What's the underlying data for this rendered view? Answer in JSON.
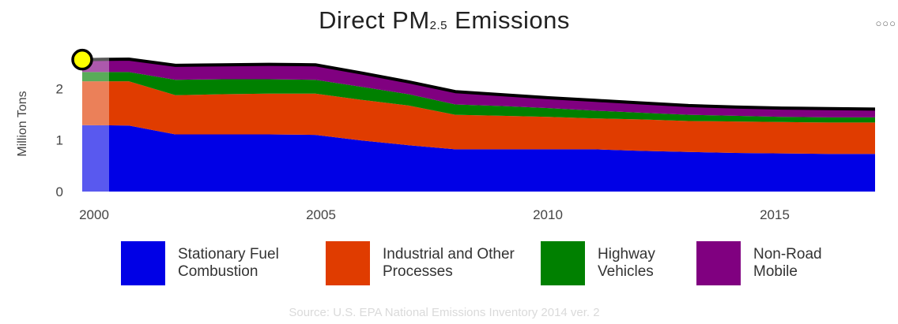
{
  "title": {
    "main": "Direct PM",
    "sub": "2.5",
    "rest": " Emissions"
  },
  "menu_icon": "more-options-icon",
  "source": "Source: U.S. EPA National Emissions Inventory 2014 ver. 2",
  "chart_data": {
    "type": "area",
    "stacked": true,
    "title": "Direct PM2.5 Emissions",
    "ylabel": "Million Tons",
    "xlabel": "",
    "x": [
      2000,
      2001,
      2002,
      2003,
      2004,
      2005,
      2006,
      2007,
      2008,
      2009,
      2010,
      2011,
      2012,
      2013,
      2014,
      2015,
      2016,
      2017
    ],
    "xticks": [
      "2000",
      "2005",
      "2010",
      "2015"
    ],
    "yticks": [
      "0",
      "1",
      "2"
    ],
    "xlim": [
      1999.5,
      2017.1
    ],
    "ylim": [
      0,
      2.8
    ],
    "grid": false,
    "legend_position": "bottom",
    "series": [
      {
        "name": "Stationary Fuel Combustion",
        "color": "#0000e6",
        "values": [
          1.29,
          1.28,
          1.11,
          1.11,
          1.11,
          1.1,
          0.99,
          0.9,
          0.82,
          0.82,
          0.82,
          0.82,
          0.79,
          0.77,
          0.75,
          0.74,
          0.73,
          0.73
        ]
      },
      {
        "name": "Industrial and Other Processes",
        "color": "#e03c00",
        "values": [
          0.85,
          0.86,
          0.76,
          0.78,
          0.79,
          0.8,
          0.79,
          0.77,
          0.67,
          0.65,
          0.63,
          0.6,
          0.61,
          0.6,
          0.61,
          0.61,
          0.61,
          0.61
        ]
      },
      {
        "name": "Highway Vehicles",
        "color": "#008000",
        "values": [
          0.18,
          0.18,
          0.3,
          0.29,
          0.28,
          0.27,
          0.25,
          0.22,
          0.2,
          0.19,
          0.17,
          0.15,
          0.13,
          0.12,
          0.11,
          0.1,
          0.1,
          0.1
        ]
      },
      {
        "name": "Non-Road Mobile",
        "color": "#800080",
        "values": [
          0.24,
          0.25,
          0.28,
          0.28,
          0.29,
          0.29,
          0.27,
          0.24,
          0.25,
          0.22,
          0.2,
          0.2,
          0.19,
          0.18,
          0.17,
          0.17,
          0.17,
          0.16
        ]
      }
    ],
    "highlight": {
      "x": 2000,
      "color": "#ffff00"
    }
  }
}
